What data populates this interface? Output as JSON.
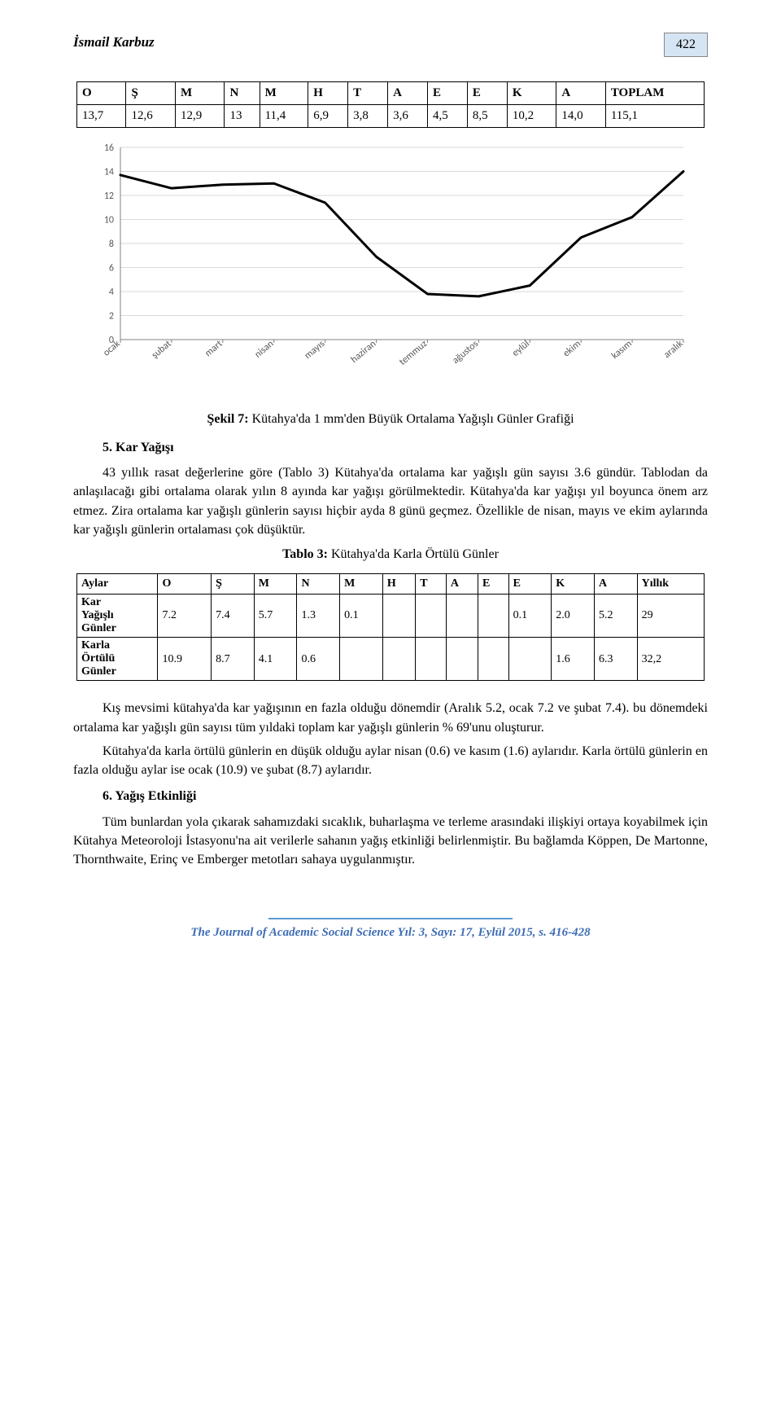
{
  "header": {
    "author": "İsmail Karbuz",
    "page_number": "422"
  },
  "table1": {
    "headers": [
      "O",
      "Ş",
      "M",
      "N",
      "M",
      "H",
      "T",
      "A",
      "E",
      "E",
      "K",
      "A",
      "TOPLAM"
    ],
    "values": [
      "13,7",
      "12,6",
      "12,9",
      "13",
      "11,4",
      "6,9",
      "3,8",
      "3,6",
      "4,5",
      "8,5",
      "10,2",
      "14,0",
      "115,1"
    ]
  },
  "chart": {
    "type": "line",
    "x_labels": [
      "ocak",
      "şubat",
      "mart",
      "nisan",
      "mayıs",
      "haziran",
      "temmuz",
      "ağustos",
      "eylül",
      "ekim",
      "kasım",
      "aralık"
    ],
    "y_values": [
      13.7,
      12.6,
      12.9,
      13,
      11.4,
      6.9,
      3.8,
      3.6,
      4.5,
      8.5,
      10.2,
      14.0
    ],
    "ylim": [
      0,
      16
    ],
    "ytick_step": 2,
    "line_color": "#000000",
    "line_width": 3,
    "axis_color": "#808080",
    "grid_color": "#d9d9d9",
    "background_color": "#ffffff",
    "label_fontsize": 12,
    "x_label_rotation": -40
  },
  "fig7_caption_bold": "Şekil 7:",
  "fig7_caption_rest": " Kütahya'da 1 mm'den Büyük Ortalama Yağışlı Günler Grafiği",
  "section5_title": "5. Kar Yağışı",
  "para1": "43 yıllık rasat değerlerine göre (Tablo 3) Kütahya'da ortalama kar yağışlı gün sayısı 3.6 gündür. Tablodan da anlaşılacağı gibi ortalama olarak yılın 8 ayında kar yağışı görülmektedir. Kütahya'da kar yağışı yıl boyunca önem arz etmez. Zira ortalama kar yağışlı günlerin sayısı hiçbir ayda 8 günü geçmez. Özellikle de nisan, mayıs ve ekim aylarında kar yağışlı günlerin ortalaması çok düşüktür.",
  "table3_caption_bold": "Tablo 3:",
  "table3_caption_rest": " Kütahya'da Karla Örtülü Günler",
  "table3": {
    "col_headers": [
      "Aylar",
      "O",
      "Ş",
      "M",
      "N",
      "M",
      "H",
      "T",
      "A",
      "E",
      "E",
      "K",
      "A",
      "Yıllık"
    ],
    "row1_label": "Kar Yağışlı Günler",
    "row1": [
      "7.2",
      "7.4",
      "5.7",
      "1.3",
      "0.1",
      "",
      "",
      "",
      "",
      "0.1",
      "2.0",
      "5.2",
      "29"
    ],
    "row2_label": "Karla Örtülü Günler",
    "row2": [
      "10.9",
      "8.7",
      "4.1",
      "0.6",
      "",
      "",
      "",
      "",
      "",
      "",
      "1.6",
      "6.3",
      "32,2"
    ]
  },
  "para2": "Kış mevsimi kütahya'da kar yağışının en fazla olduğu dönemdir (Aralık 5.2, ocak 7.2 ve şubat 7.4). bu dönemdeki ortalama kar yağışlı gün sayısı tüm yıldaki toplam kar yağışlı günlerin % 69'unu oluşturur.",
  "para3": "Kütahya'da karla örtülü günlerin en düşük olduğu aylar nisan (0.6) ve kasım (1.6) aylarıdır. Karla örtülü günlerin en fazla olduğu aylar ise ocak (10.9) ve şubat (8.7) aylarıdır.",
  "section6_title": "6. Yağış Etkinliği",
  "para4": "Tüm bunlardan yola çıkarak sahamızdaki sıcaklık, buharlaşma ve terleme arasındaki ilişkiyi ortaya koyabilmek için Kütahya Meteoroloji İstasyonu'na ait verilerle sahanın yağış etkinliği belirlenmiştir. Bu bağlamda Köppen, De Martonne, Thornthwaite, Erinç ve Emberger metotları sahaya uygulanmıştır.",
  "footer_text": "The Journal of Academic Social Science Yıl: 3, Sayı: 17, Eylül 2015, s. 416-428"
}
